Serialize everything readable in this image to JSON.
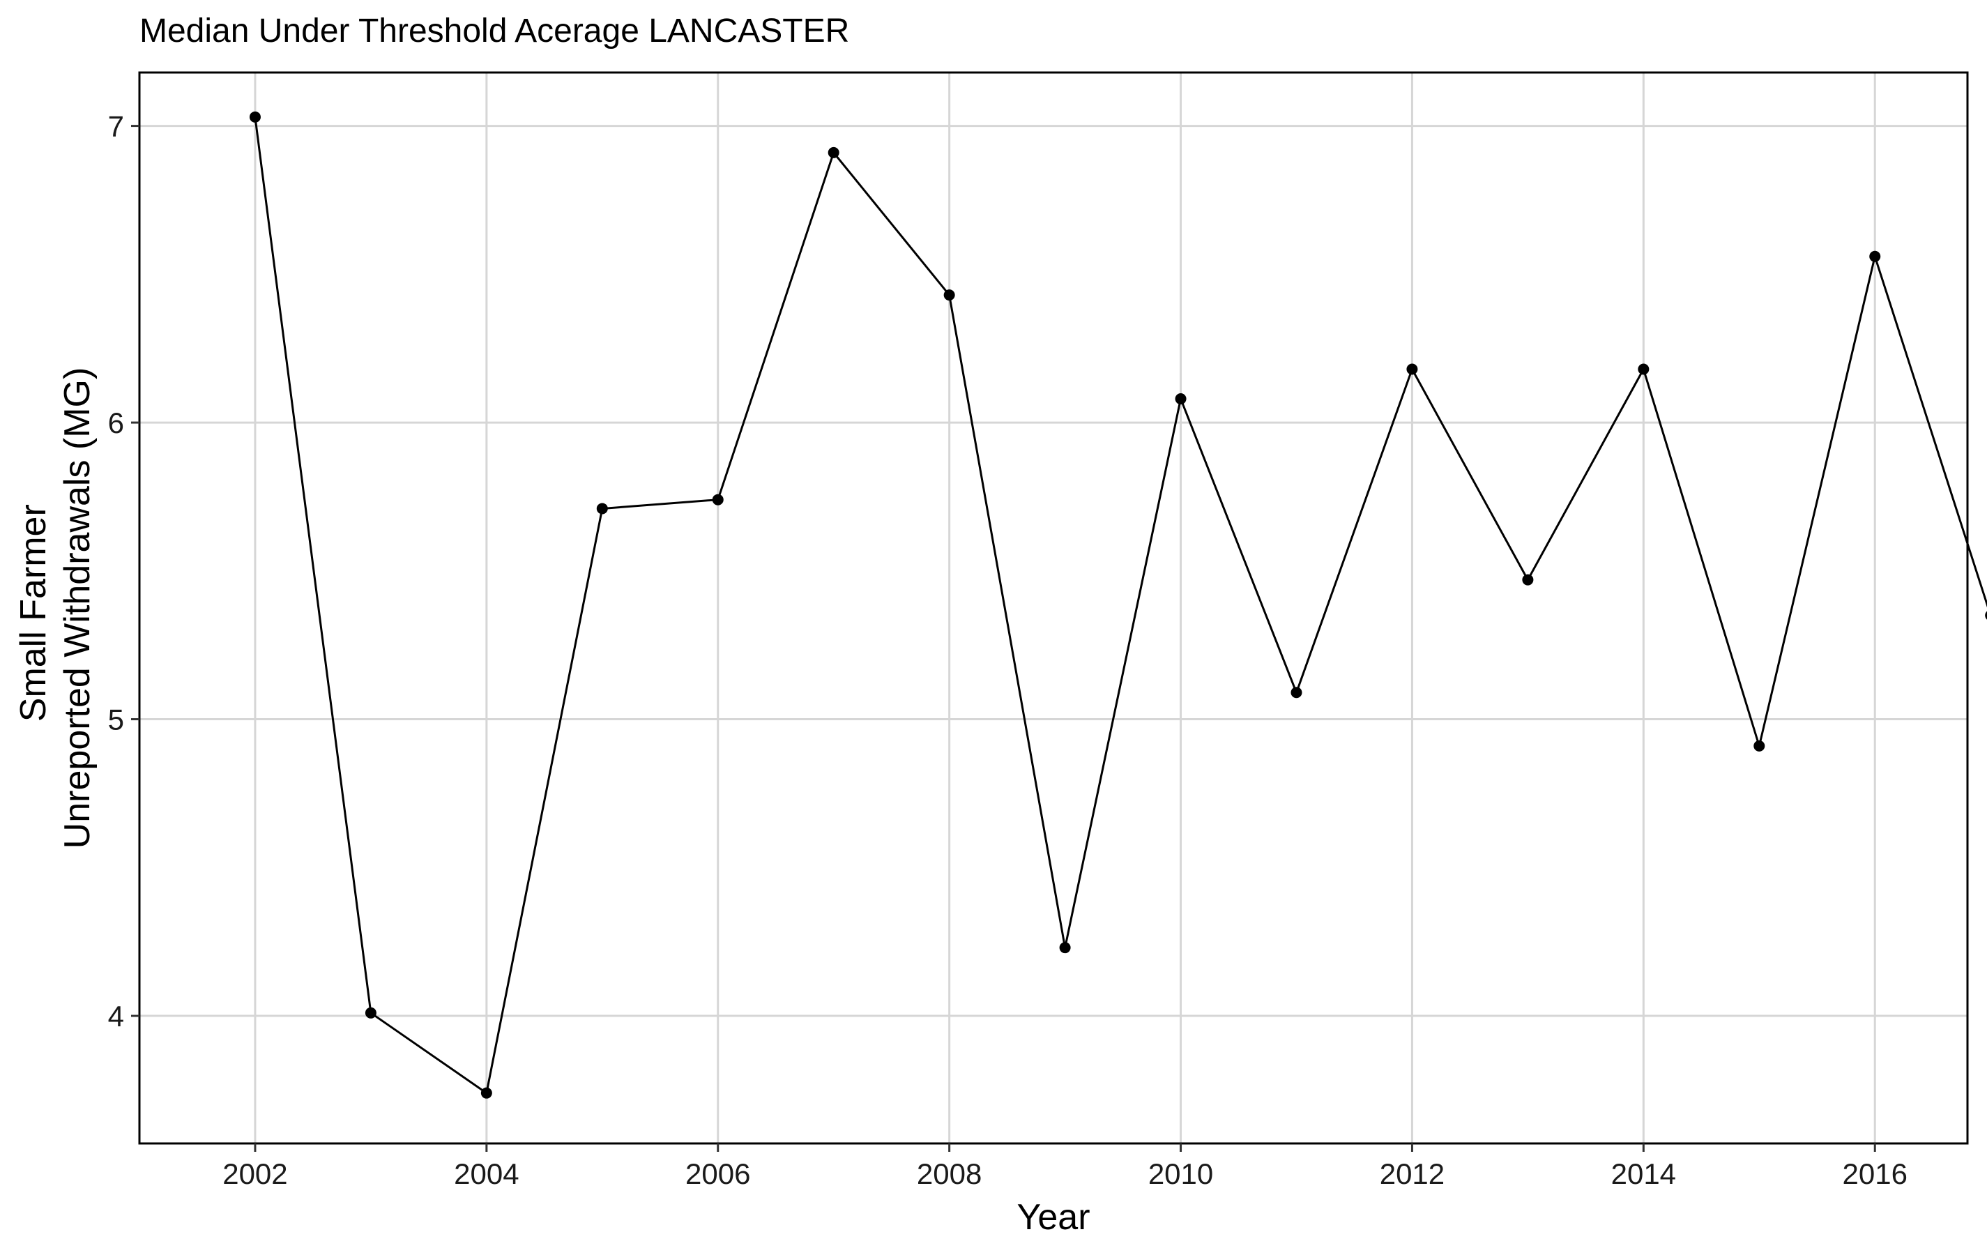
{
  "chart_data": {
    "type": "line",
    "title": "Median Under Threshold Acerage LANCASTER",
    "xlabel": "Year",
    "ylabel_lines": [
      "Small Farmer",
      "Unreported Withdrawals (MG)"
    ],
    "xlim": [
      2001.0,
      2016.8
    ],
    "ylim": [
      3.57,
      7.18
    ],
    "xticks": [
      2002,
      2004,
      2006,
      2008,
      2010,
      2012,
      2014,
      2016
    ],
    "yticks": [
      4,
      5,
      6,
      7
    ],
    "grid": true,
    "series": [
      {
        "x": [
          2002,
          2003,
          2004,
          2005,
          2006,
          2007,
          2008,
          2009,
          2010,
          2011,
          2012,
          2013,
          2014,
          2015,
          2016,
          2017
        ],
        "y": [
          7.03,
          4.01,
          3.74,
          5.71,
          5.74,
          6.91,
          6.43,
          4.23,
          6.08,
          5.09,
          6.18,
          5.47,
          6.18,
          4.91,
          6.56,
          5.35
        ]
      }
    ],
    "colors": {
      "line": "#000000",
      "grid": "#d6d6d6",
      "background": "#ffffff"
    }
  }
}
